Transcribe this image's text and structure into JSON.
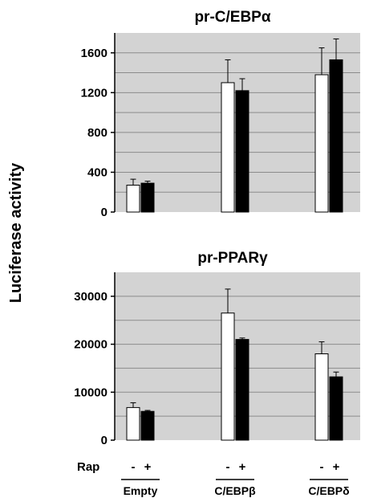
{
  "figure": {
    "ylabel": "Luciferase activity",
    "rap_label": "Rap",
    "rap_conditions": [
      "-",
      "+",
      "-",
      "+",
      "-",
      "+"
    ]
  },
  "chart_data": [
    {
      "type": "bar",
      "title": "pr-C/EBPα",
      "categories": [
        "Empty",
        "C/EBPβ",
        "C/EBPδ"
      ],
      "series": [
        {
          "rap": "-",
          "values": [
            270,
            1300,
            1380
          ],
          "errors": [
            60,
            230,
            270
          ],
          "color": "#ffffff"
        },
        {
          "rap": "+",
          "values": [
            290,
            1220,
            1530
          ],
          "errors": [
            20,
            120,
            210
          ],
          "color": "#000000"
        }
      ],
      "ylim": [
        0,
        1800
      ],
      "yticks": [
        0,
        400,
        800,
        1200,
        1600
      ],
      "ytick_labels": [
        "0",
        "400",
        "800",
        "1200",
        "1600"
      ],
      "grid": true
    },
    {
      "type": "bar",
      "title": "pr-PPARγ",
      "categories": [
        "Empty",
        "C/EBPβ",
        "C/EBPδ"
      ],
      "series": [
        {
          "rap": "-",
          "values": [
            6800,
            26500,
            18000
          ],
          "errors": [
            1000,
            5000,
            2500
          ],
          "color": "#ffffff"
        },
        {
          "rap": "+",
          "values": [
            6000,
            21000,
            13200
          ],
          "errors": [
            200,
            300,
            1000
          ],
          "color": "#000000"
        }
      ],
      "ylim": [
        0,
        35000
      ],
      "yticks": [
        0,
        10000,
        20000,
        30000
      ],
      "ytick_labels": [
        "0",
        "10000",
        "20000",
        "30000"
      ],
      "grid": true
    }
  ]
}
